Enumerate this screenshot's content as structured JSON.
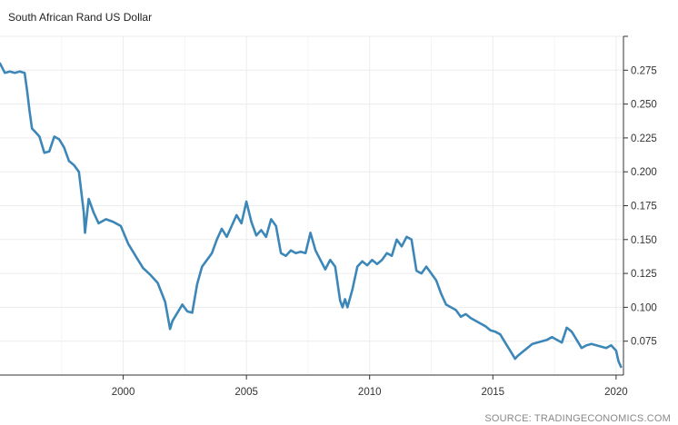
{
  "chart_data": {
    "type": "line",
    "title": "South African Rand US Dollar",
    "source": "SOURCE: TRADINGECONOMICS.COM",
    "xlim": [
      1995.0,
      2020.3
    ],
    "ylim": [
      0.05,
      0.3
    ],
    "x_ticks": [
      2000,
      2005,
      2010,
      2015,
      2020
    ],
    "y_ticks": [
      0.075,
      0.1,
      0.125,
      0.15,
      0.175,
      0.2,
      0.225,
      0.25,
      0.275
    ],
    "y_tick_labels": [
      "0.075",
      "0.100",
      "0.125",
      "0.150",
      "0.175",
      "0.200",
      "0.225",
      "0.250",
      "0.275"
    ],
    "axis_side": "right",
    "grid": true,
    "line_color": "#3d87b8",
    "series": [
      {
        "x": [
          1995.0,
          1995.2,
          1995.4,
          1995.6,
          1995.8,
          1996.0,
          1996.1,
          1996.2,
          1996.3,
          1996.4,
          1996.6,
          1996.8,
          1997.0,
          1997.2,
          1997.4,
          1997.6,
          1997.8,
          1998.0,
          1998.2,
          1998.4,
          1998.45,
          1998.6,
          1998.8,
          1999.0,
          1999.3,
          1999.6,
          1999.9,
          2000.2,
          2000.5,
          2000.8,
          2001.1,
          2001.4,
          2001.7,
          2001.9,
          2002.0,
          2002.2,
          2002.4,
          2002.6,
          2002.8,
          2003.0,
          2003.2,
          2003.4,
          2003.6,
          2003.8,
          2004.0,
          2004.2,
          2004.4,
          2004.6,
          2004.8,
          2005.0,
          2005.2,
          2005.4,
          2005.6,
          2005.8,
          2006.0,
          2006.2,
          2006.4,
          2006.6,
          2006.8,
          2007.0,
          2007.2,
          2007.4,
          2007.6,
          2007.8,
          2008.0,
          2008.2,
          2008.4,
          2008.6,
          2008.8,
          2008.9,
          2009.0,
          2009.1,
          2009.3,
          2009.5,
          2009.7,
          2009.9,
          2010.1,
          2010.3,
          2010.5,
          2010.7,
          2010.9,
          2011.1,
          2011.3,
          2011.5,
          2011.7,
          2011.9,
          2012.1,
          2012.3,
          2012.5,
          2012.7,
          2012.9,
          2013.1,
          2013.3,
          2013.5,
          2013.7,
          2013.9,
          2014.1,
          2014.3,
          2014.5,
          2014.7,
          2014.9,
          2015.1,
          2015.3,
          2015.5,
          2015.7,
          2015.9,
          2016.0,
          2016.2,
          2016.4,
          2016.6,
          2016.8,
          2017.0,
          2017.2,
          2017.4,
          2017.6,
          2017.8,
          2018.0,
          2018.2,
          2018.4,
          2018.6,
          2018.8,
          2019.0,
          2019.2,
          2019.4,
          2019.6,
          2019.8,
          2019.9,
          2020.0,
          2020.1,
          2020.2
        ],
        "y": [
          0.28,
          0.273,
          0.274,
          0.273,
          0.274,
          0.273,
          0.26,
          0.245,
          0.232,
          0.23,
          0.226,
          0.214,
          0.215,
          0.226,
          0.224,
          0.218,
          0.208,
          0.205,
          0.2,
          0.17,
          0.155,
          0.18,
          0.17,
          0.162,
          0.165,
          0.163,
          0.16,
          0.147,
          0.138,
          0.129,
          0.124,
          0.118,
          0.104,
          0.084,
          0.09,
          0.096,
          0.102,
          0.097,
          0.096,
          0.117,
          0.13,
          0.135,
          0.14,
          0.15,
          0.158,
          0.152,
          0.16,
          0.168,
          0.162,
          0.178,
          0.163,
          0.153,
          0.157,
          0.152,
          0.165,
          0.16,
          0.14,
          0.138,
          0.142,
          0.14,
          0.141,
          0.14,
          0.155,
          0.142,
          0.135,
          0.128,
          0.135,
          0.13,
          0.105,
          0.1,
          0.106,
          0.1,
          0.113,
          0.13,
          0.134,
          0.131,
          0.135,
          0.132,
          0.135,
          0.14,
          0.138,
          0.15,
          0.145,
          0.152,
          0.15,
          0.127,
          0.125,
          0.13,
          0.125,
          0.12,
          0.11,
          0.102,
          0.1,
          0.098,
          0.093,
          0.095,
          0.092,
          0.09,
          0.088,
          0.086,
          0.083,
          0.082,
          0.08,
          0.074,
          0.068,
          0.062,
          0.064,
          0.067,
          0.07,
          0.073,
          0.074,
          0.075,
          0.076,
          0.078,
          0.076,
          0.074,
          0.085,
          0.082,
          0.076,
          0.07,
          0.072,
          0.073,
          0.072,
          0.071,
          0.07,
          0.072,
          0.07,
          0.068,
          0.06,
          0.056
        ]
      }
    ]
  }
}
